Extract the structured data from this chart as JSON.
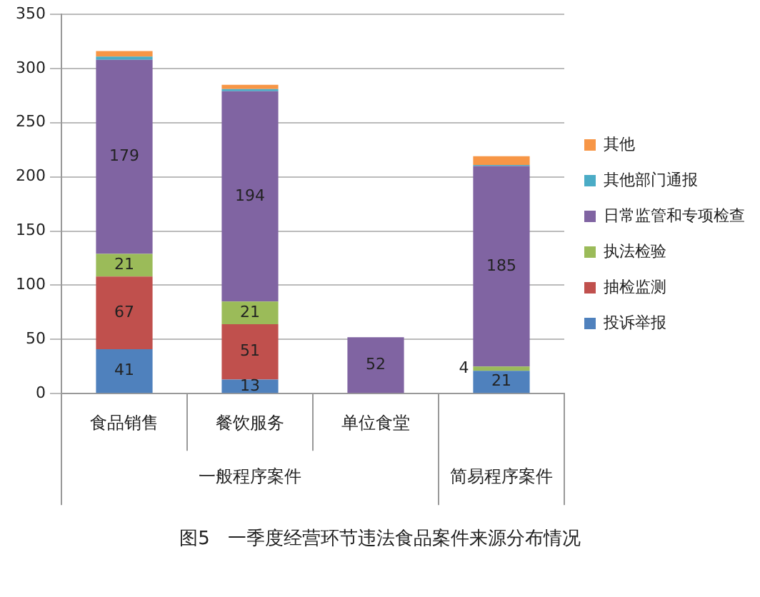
{
  "chart_data": {
    "type": "bar",
    "title": "图5   一季度经营环节违法食品案件来源分布情况",
    "stacked": true,
    "categories": [
      "食品销售",
      "餐饮服务",
      "单位食堂",
      null
    ],
    "series": [
      {
        "name": "投诉举报",
        "color": "#4f81bd",
        "values": [
          41,
          13,
          null,
          21
        ],
        "value_labels": [
          "41",
          "13",
          null,
          "21"
        ]
      },
      {
        "name": "抽检监测",
        "color": "#c0504d",
        "values": [
          67,
          51,
          null,
          null
        ],
        "value_labels": [
          "67",
          "51",
          null,
          null
        ]
      },
      {
        "name": "执法检验",
        "color": "#9bbb59",
        "values": [
          21,
          21,
          null,
          4
        ],
        "value_labels": [
          "21",
          "21",
          null,
          "4"
        ]
      },
      {
        "name": "日常监管和专项检查",
        "color": "#8064a2",
        "values": [
          179,
          194,
          52,
          185
        ],
        "value_labels": [
          "179",
          "194",
          "52",
          "185"
        ]
      },
      {
        "name": "其他部门通报",
        "color": "#4bacc6",
        "values": [
          3,
          2,
          null,
          1
        ],
        "value_labels": [
          null,
          null,
          null,
          null
        ]
      },
      {
        "name": "其他",
        "color": "#f79646",
        "values": [
          5,
          4,
          null,
          8
        ],
        "value_labels": [
          null,
          null,
          null,
          null
        ]
      }
    ],
    "ylim": [
      0,
      350
    ],
    "yticks": [
      0,
      50,
      100,
      150,
      200,
      250,
      300,
      350
    ],
    "grid": "y",
    "legend": "right",
    "annotations": [
      "一般程序案件",
      "简易程序案件"
    ]
  }
}
